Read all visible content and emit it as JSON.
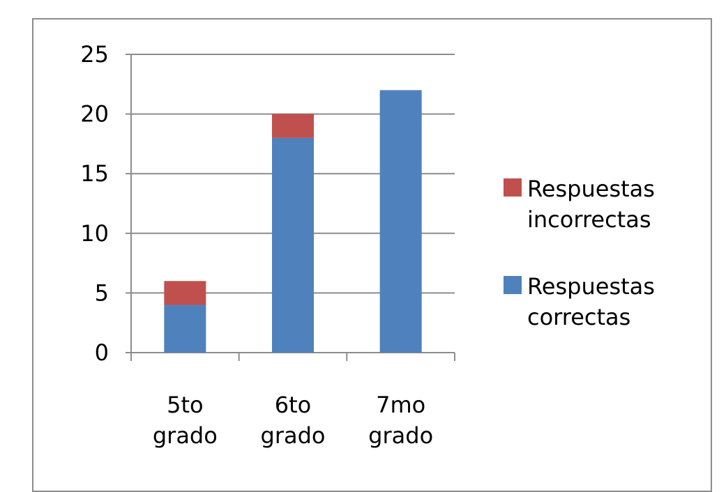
{
  "chart_data": {
    "type": "bar",
    "stacked": true,
    "categories": [
      [
        "5to",
        "grado"
      ],
      [
        "6to",
        "grado"
      ],
      [
        "7mo",
        "grado"
      ]
    ],
    "series": [
      {
        "name": "Respuestas correctas",
        "values": [
          4,
          18,
          22
        ],
        "color": "#4f81bd"
      },
      {
        "name": "Respuestas incorrectas",
        "values": [
          2,
          2,
          0
        ],
        "color": "#c0504d"
      }
    ],
    "ylim": [
      0,
      25
    ],
    "yticks": [
      0,
      5,
      10,
      15,
      20,
      25
    ],
    "grid": true,
    "legend_position": "right",
    "legend": [
      {
        "series": 1,
        "lines": [
          "Respuestas",
          "incorrectas"
        ]
      },
      {
        "series": 0,
        "lines": [
          "Respuestas",
          "correctas"
        ]
      }
    ],
    "title": "",
    "xlabel": "",
    "ylabel": ""
  }
}
